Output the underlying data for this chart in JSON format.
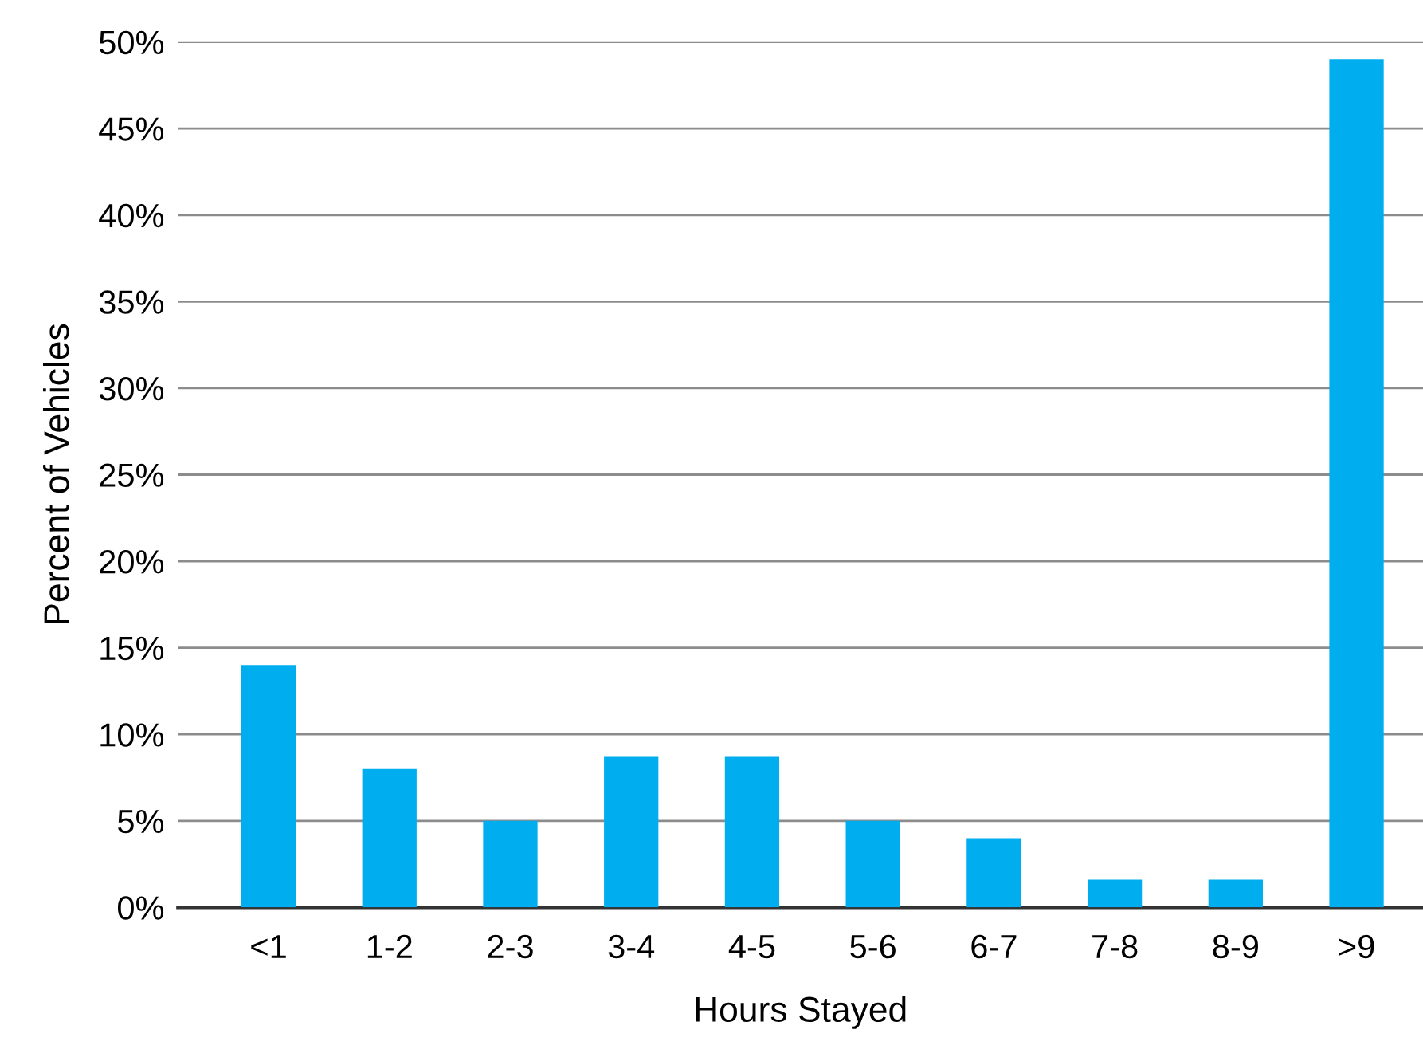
{
  "chart_data": {
    "type": "bar",
    "xlabel": "Hours Stayed",
    "ylabel": "Percent of Vehicles",
    "categories": [
      "<1",
      "1-2",
      "2-3",
      "3-4",
      "4-5",
      "5-6",
      "6-7",
      "7-8",
      "8-9",
      ">9"
    ],
    "values": [
      14,
      8,
      5,
      8.7,
      8.7,
      5,
      4,
      1.6,
      1.6,
      49
    ],
    "color": "#00aeef",
    "ylim": [
      0,
      50
    ],
    "yticks": [
      {
        "value": 0,
        "label": "0%"
      },
      {
        "value": 5,
        "label": "5%"
      },
      {
        "value": 10,
        "label": "10%"
      },
      {
        "value": 15,
        "label": "15%"
      },
      {
        "value": 20,
        "label": "20%"
      },
      {
        "value": 25,
        "label": "25%"
      },
      {
        "value": 30,
        "label": "30%"
      },
      {
        "value": 35,
        "label": "35%"
      },
      {
        "value": 40,
        "label": "40%"
      },
      {
        "value": 45,
        "label": "45%"
      },
      {
        "value": 50,
        "label": "50%"
      }
    ],
    "grid": "y",
    "legend": false
  }
}
